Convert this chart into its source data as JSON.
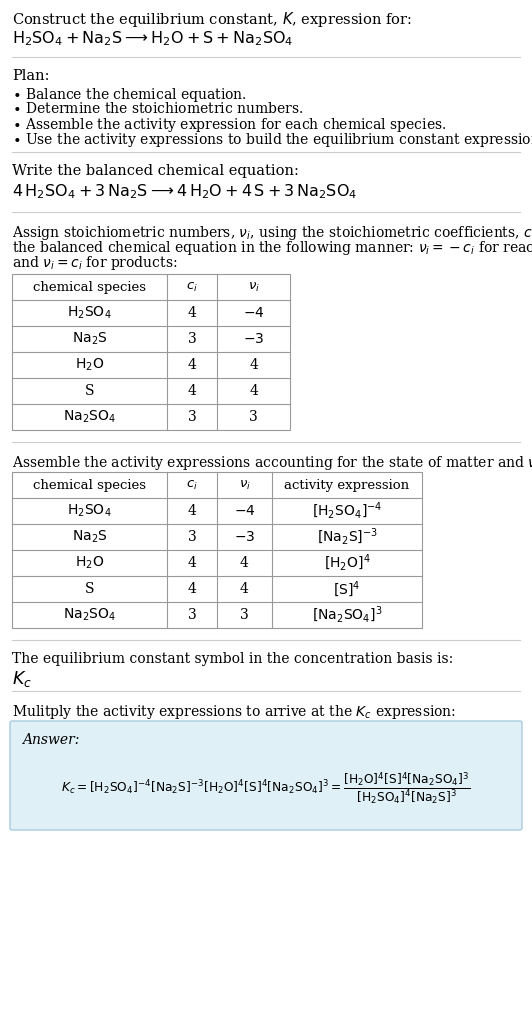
{
  "bg_color": "#ffffff",
  "title_line1": "Construct the equilibrium constant, $K$, expression for:",
  "reaction_unbalanced": "$\\mathrm{H_2SO_4 + Na_2S \\longrightarrow H_2O + S + Na_2SO_4}$",
  "plan_header": "Plan:",
  "plan_items": [
    "$\\bullet$ Balance the chemical equation.",
    "$\\bullet$ Determine the stoichiometric numbers.",
    "$\\bullet$ Assemble the activity expression for each chemical species.",
    "$\\bullet$ Use the activity expressions to build the equilibrium constant expression."
  ],
  "balanced_header": "Write the balanced chemical equation:",
  "reaction_balanced": "$\\mathrm{4\\,H_2SO_4 + 3\\,Na_2S \\longrightarrow 4\\,H_2O + 4\\,S + 3\\,Na_2SO_4}$",
  "stoich_intro_parts": [
    "Assign stoichiometric numbers, $\\nu_i$, using the stoichiometric coefficients, $c_i$, from",
    "the balanced chemical equation in the following manner: $\\nu_i = -c_i$ for reactants",
    "and $\\nu_i = c_i$ for products:"
  ],
  "table1_headers": [
    "chemical species",
    "$c_i$",
    "$\\nu_i$"
  ],
  "table1_data": [
    [
      "$\\mathrm{H_2SO_4}$",
      "4",
      "$-4$"
    ],
    [
      "$\\mathrm{Na_2S}$",
      "3",
      "$-3$"
    ],
    [
      "$\\mathrm{H_2O}$",
      "4",
      "4"
    ],
    [
      "S",
      "4",
      "4"
    ],
    [
      "$\\mathrm{Na_2SO_4}$",
      "3",
      "3"
    ]
  ],
  "activity_intro": "Assemble the activity expressions accounting for the state of matter and $\\nu_i$:",
  "table2_headers": [
    "chemical species",
    "$c_i$",
    "$\\nu_i$",
    "activity expression"
  ],
  "table2_data": [
    [
      "$\\mathrm{H_2SO_4}$",
      "4",
      "$-4$",
      "$[\\mathrm{H_2SO_4}]^{-4}$"
    ],
    [
      "$\\mathrm{Na_2S}$",
      "3",
      "$-3$",
      "$[\\mathrm{Na_2S}]^{-3}$"
    ],
    [
      "$\\mathrm{H_2O}$",
      "4",
      "4",
      "$[\\mathrm{H_2O}]^{4}$"
    ],
    [
      "S",
      "4",
      "4",
      "$[\\mathrm{S}]^{4}$"
    ],
    [
      "$\\mathrm{Na_2SO_4}$",
      "3",
      "3",
      "$[\\mathrm{Na_2SO_4}]^{3}$"
    ]
  ],
  "kc_intro": "The equilibrium constant symbol in the concentration basis is:",
  "kc_symbol": "$K_c$",
  "multiply_intro": "Mulitply the activity expressions to arrive at the $K_c$ expression:",
  "answer_box_color": "#dff0f7",
  "answer_label": "Answer:",
  "line_color": "#cccccc",
  "table_line_color": "#999999"
}
